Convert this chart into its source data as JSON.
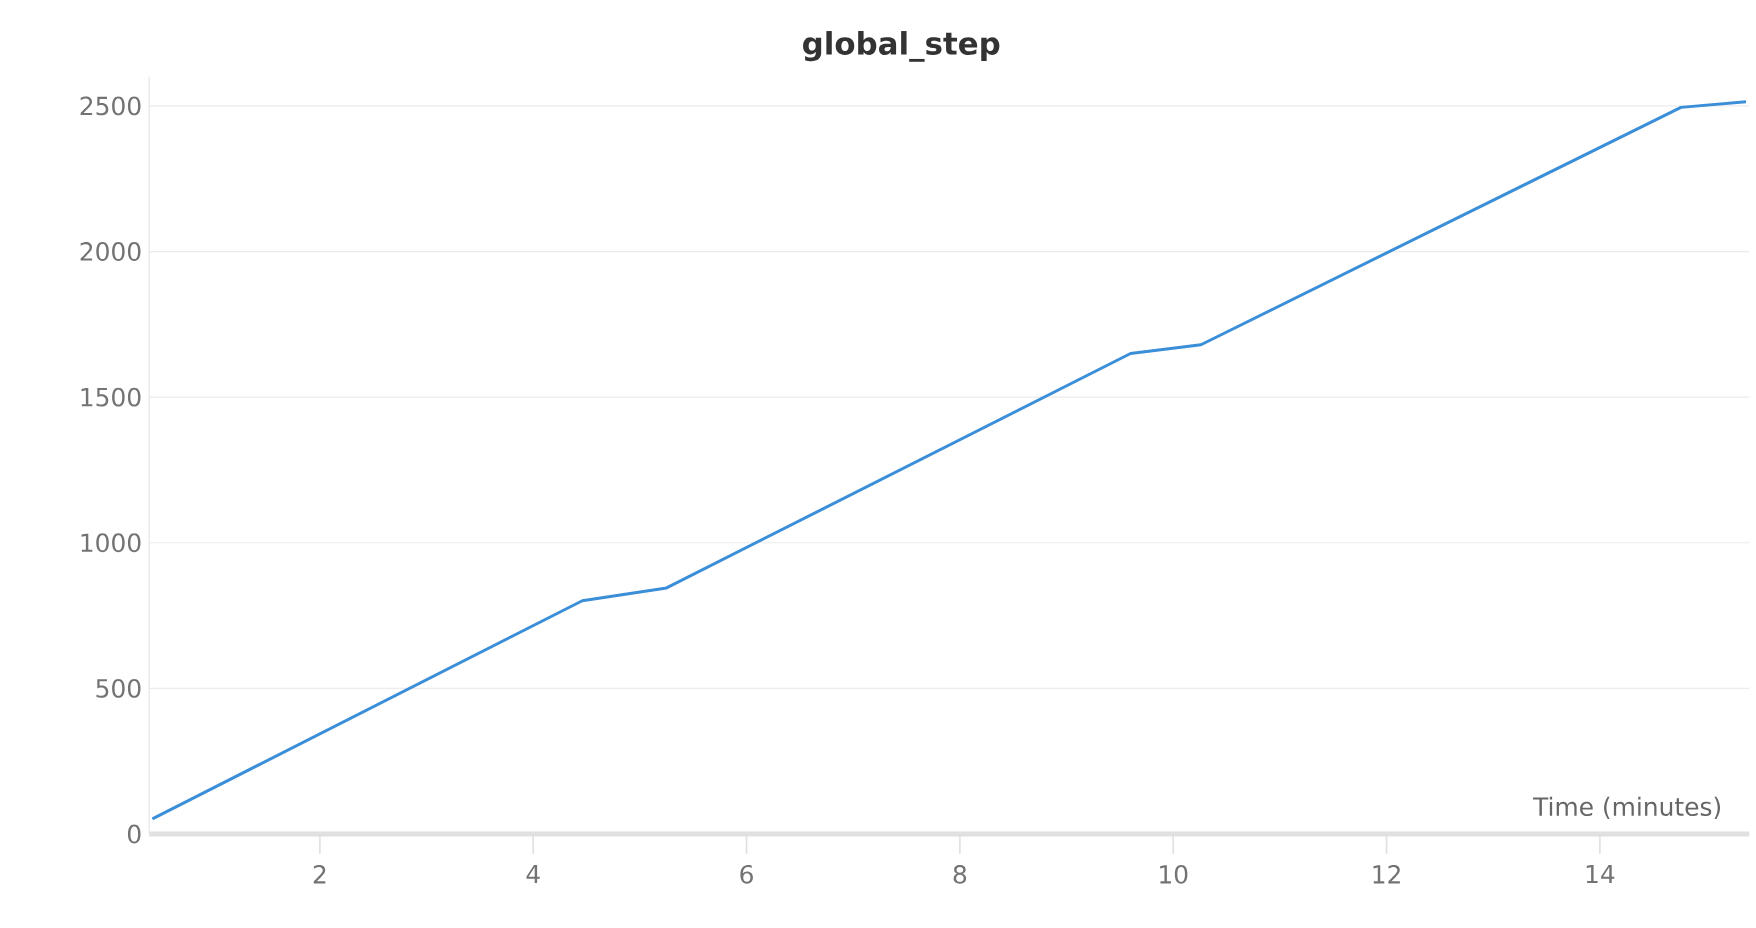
{
  "chart_data": {
    "type": "line",
    "title": "global_step",
    "xlabel": "Time (minutes)",
    "x": [
      0.43,
      4.46,
      5.25,
      9.6,
      10.26,
      14.76,
      15.37
    ],
    "series": [
      {
        "color": "#3b8ed8",
        "values": [
          52,
          801,
          845,
          1650,
          1680,
          2495,
          2514
        ]
      }
    ],
    "xlim": [
      0.4,
      15.4
    ],
    "ylim": [
      0,
      2600
    ],
    "xticks": [
      2,
      4,
      6,
      8,
      10,
      12,
      14
    ],
    "yticks": [
      0,
      500,
      1000,
      1500,
      2000,
      2500
    ],
    "grid": "y"
  }
}
